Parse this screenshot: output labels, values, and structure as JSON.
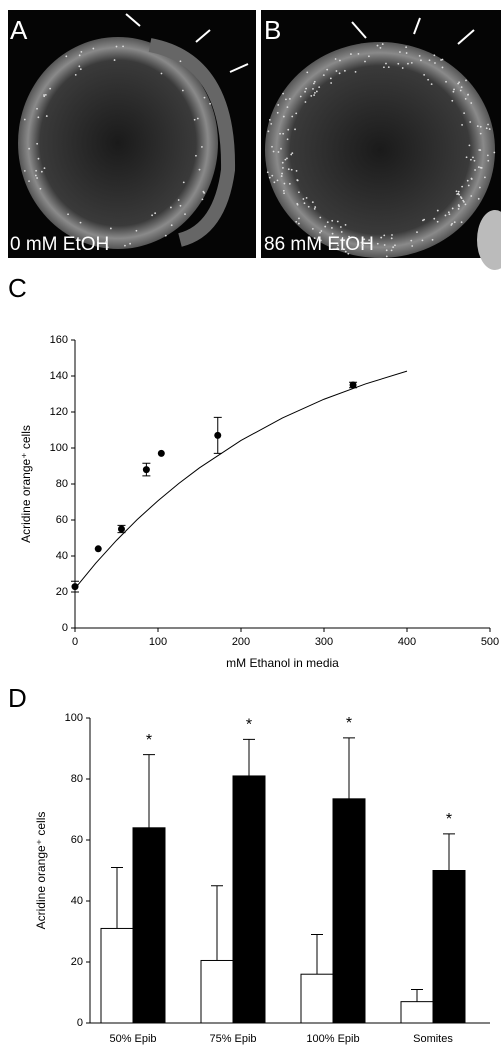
{
  "panels": [
    {
      "label": "A",
      "caption": "0 mM EtOH"
    },
    {
      "label": "B",
      "caption": "86 mM EtOH"
    }
  ],
  "chart_data": [
    {
      "type": "scatter",
      "label": "C",
      "ylabel": "Acridine orange⁺ cells",
      "xlabel": "mM Ethanol in media",
      "x": [
        0,
        28,
        56,
        86,
        104,
        172,
        335
      ],
      "y": [
        23,
        44,
        55,
        88,
        97,
        107,
        135
      ],
      "errors": [
        3,
        null,
        2,
        3.5,
        null,
        10,
        1.5
      ],
      "color": "#000000",
      "curve": {
        "x": [
          0,
          25,
          50,
          75,
          100,
          125,
          150,
          200,
          250,
          300,
          350,
          400
        ],
        "y": [
          22,
          36,
          48.7,
          60.3,
          70.7,
          80.3,
          89,
          104.2,
          116.7,
          127.1,
          135.6,
          142.7
        ]
      },
      "xlim": [
        0,
        500
      ],
      "xticks": [
        0,
        100,
        200,
        300,
        400,
        500
      ],
      "ylim": [
        0,
        160
      ],
      "yticks": [
        0,
        20,
        40,
        60,
        80,
        100,
        120,
        140,
        160
      ]
    },
    {
      "type": "bar",
      "label": "D",
      "ylabel": "Acridine orange⁺ cells",
      "categories": [
        "50% Epib",
        "75% Epib",
        "100% Epib",
        "Somites"
      ],
      "series": [
        {
          "color": "#ffffff",
          "values": [
            31,
            20.5,
            16,
            7
          ],
          "errors": [
            20,
            24.5,
            13,
            4
          ]
        },
        {
          "color": "#000000",
          "values": [
            64,
            81,
            73.5,
            50
          ],
          "errors": [
            24,
            12,
            20,
            12
          ]
        }
      ],
      "annotations": [
        "*",
        "*",
        "*",
        "*"
      ],
      "ylim": [
        0,
        100
      ],
      "yticks": [
        0,
        20,
        40,
        60,
        80,
        100
      ]
    }
  ]
}
